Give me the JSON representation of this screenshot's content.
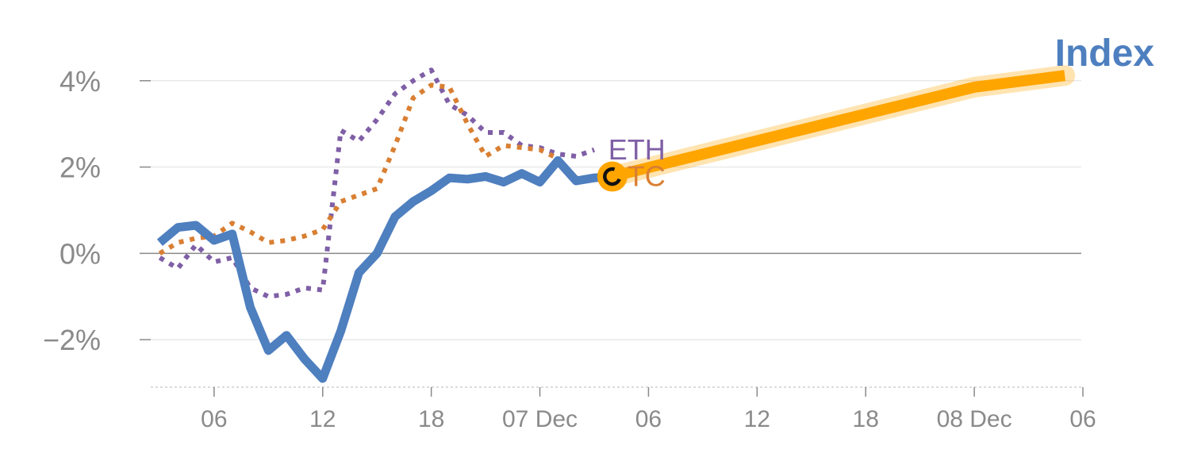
{
  "title": "Index",
  "colors": {
    "title": "#4e7fbf",
    "index_line": "#4e7fbf",
    "btc": "#d97f33",
    "eth": "#7f5fa6",
    "forecast": "#ffa500",
    "grid": "#e6e6e6",
    "zero": "#8a8a8a",
    "ticks": "#8a8a8a"
  },
  "chart_data": {
    "type": "line",
    "title": "Index",
    "xlabel": "",
    "ylabel": "",
    "ylim": [
      -3.1,
      4.4
    ],
    "y_ticks": [
      {
        "value": -2,
        "label": "−2%"
      },
      {
        "value": 0,
        "label": "0%"
      },
      {
        "value": 2,
        "label": "2%"
      },
      {
        "value": 4,
        "label": "4%"
      }
    ],
    "x_range": [
      2.5,
      54
    ],
    "x_ticks": [
      {
        "x": 6,
        "label": "06"
      },
      {
        "x": 12,
        "label": "12"
      },
      {
        "x": 18,
        "label": "18"
      },
      {
        "x": 24,
        "label": "07 Dec"
      },
      {
        "x": 30,
        "label": "06"
      },
      {
        "x": 36,
        "label": "12"
      },
      {
        "x": 42,
        "label": "18"
      },
      {
        "x": 48,
        "label": "08 Dec"
      },
      {
        "x": 54,
        "label": "06"
      }
    ],
    "grid": true,
    "series": [
      {
        "id": "index",
        "style": "solid",
        "x": [
          3,
          4,
          5,
          6,
          7,
          8,
          9,
          10,
          11,
          12,
          13,
          14,
          15,
          16,
          17,
          18,
          19,
          20,
          21,
          22,
          23,
          24,
          25,
          26,
          27,
          28
        ],
        "values": [
          0.25,
          0.6,
          0.65,
          0.3,
          0.45,
          -1.25,
          -2.25,
          -1.9,
          -2.45,
          -2.9,
          -1.8,
          -0.45,
          0.0,
          0.85,
          1.2,
          1.45,
          1.75,
          1.72,
          1.78,
          1.65,
          1.85,
          1.65,
          2.15,
          1.68,
          1.75,
          1.78
        ]
      },
      {
        "id": "btc",
        "name": "BTC",
        "style": "dotted",
        "x": [
          3,
          4,
          5,
          6,
          7,
          8,
          9,
          10,
          11,
          12,
          13,
          14,
          15,
          16,
          17,
          18,
          19,
          20,
          21,
          22,
          23,
          24,
          25,
          26,
          27,
          28
        ],
        "values": [
          0.0,
          0.25,
          0.35,
          0.4,
          0.7,
          0.5,
          0.25,
          0.3,
          0.4,
          0.55,
          1.2,
          1.35,
          1.5,
          2.5,
          3.6,
          3.9,
          3.85,
          3.0,
          2.25,
          2.5,
          2.45,
          2.4,
          2.2,
          1.75,
          1.75,
          1.8
        ]
      },
      {
        "id": "eth",
        "name": "ETH",
        "style": "dotted",
        "x": [
          3,
          4,
          5,
          6,
          7,
          8,
          9,
          10,
          11,
          12,
          13,
          14,
          15,
          16,
          17,
          18,
          19,
          20,
          21,
          22,
          23,
          24,
          25,
          26,
          27
        ],
        "values": [
          -0.1,
          -0.35,
          0.2,
          -0.2,
          -0.1,
          -0.8,
          -1.0,
          -0.95,
          -0.8,
          -0.85,
          2.85,
          2.6,
          3.1,
          3.7,
          4.0,
          4.25,
          3.45,
          3.2,
          2.8,
          2.8,
          2.5,
          2.45,
          2.3,
          2.25,
          2.4
        ]
      },
      {
        "id": "forecast",
        "style": "thick",
        "x": [
          28,
          48,
          53
        ],
        "values": [
          1.78,
          3.85,
          4.12
        ]
      }
    ],
    "annotations": [
      {
        "text": "ETH",
        "x": 28,
        "y": 2.4
      },
      {
        "text": "BTC",
        "x": 28,
        "y": 1.78
      }
    ],
    "marker": {
      "x": 28,
      "y": 1.78
    }
  }
}
